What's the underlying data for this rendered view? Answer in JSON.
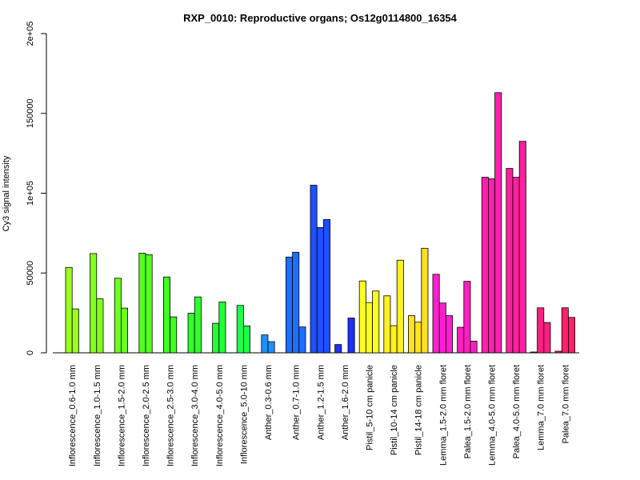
{
  "chart_data": {
    "type": "bar",
    "title": "RXP_0010: Reproductive organs; Os12g0114800_16354",
    "xlabel": "",
    "ylabel": "Cy3 signal intensity",
    "ylim": [
      0,
      200000
    ],
    "yticks": [
      0,
      50000,
      100000,
      150000,
      200000
    ],
    "ytick_labels": [
      "0",
      "50000",
      "1e+05",
      "150000",
      "2e+05"
    ],
    "grid": false,
    "legend": "none",
    "groups": [
      {
        "label": "Inflorescence_0.6-1.0 mm",
        "values": [
          53500,
          27500
        ],
        "color": "#9aff1f"
      },
      {
        "label": "Inflorescence_1.0-1.5 mm",
        "values": [
          62200,
          33800
        ],
        "color": "#83ff1f"
      },
      {
        "label": "Inflorescence_1.5-2.0 mm",
        "values": [
          46700,
          28000
        ],
        "color": "#6cff1f"
      },
      {
        "label": "Inflorescence_2.0-2.5 mm",
        "values": [
          62400,
          61500
        ],
        "color": "#55ff1f"
      },
      {
        "label": "Inflorescence_2.5-3.0 mm",
        "values": [
          47500,
          22500
        ],
        "color": "#3fff1f"
      },
      {
        "label": "Inflorescence_3.0-4.0 mm",
        "values": [
          24800,
          35000
        ],
        "color": "#2fff2a"
      },
      {
        "label": "Inflorescence_4.0-5.0 mm",
        "values": [
          18500,
          31800
        ],
        "color": "#22ff35"
      },
      {
        "label": "Inflorescence_5.0-10 mm",
        "values": [
          29700,
          16800
        ],
        "color": "#1fff4a"
      },
      {
        "label": "Anther_0.3-0.6 mm",
        "values": [
          11200,
          7000
        ],
        "color": "#1f8fff"
      },
      {
        "label": "Anther_0.7-1.0 mm",
        "values": [
          60000,
          63000,
          16200
        ],
        "color": "#1f6fff"
      },
      {
        "label": "Anther_1.2-1.5 mm",
        "values": [
          105000,
          78500,
          83500
        ],
        "color": "#1f4fff"
      },
      {
        "label": "Anther_1.6-2.0 mm",
        "values": [
          5200,
          0,
          21800
        ],
        "color": "#1f2fff"
      },
      {
        "label": "Pistil_5-10 cm panicle",
        "values": [
          45000,
          31500,
          38700
        ],
        "color": "#ffff1f"
      },
      {
        "label": "Pistil_10-14 cm panicle",
        "values": [
          35700,
          17000,
          58000
        ],
        "color": "#fff01f"
      },
      {
        "label": "Pistil_14-18 cm panicle",
        "values": [
          23300,
          19200,
          65500
        ],
        "color": "#ffe11f"
      },
      {
        "label": "Lemma_1.5-2.0 mm floret",
        "values": [
          49200,
          31200,
          23300
        ],
        "color": "#ff1fcf"
      },
      {
        "label": "Palea_1.5-2.0 mm floret",
        "values": [
          16000,
          44800,
          7300
        ],
        "color": "#ff1fbf"
      },
      {
        "label": "Lemma_4.0-5.0 mm floret",
        "values": [
          110000,
          109000,
          163000
        ],
        "color": "#ff1faf"
      },
      {
        "label": "Palea_4.0-5.0 mm floret",
        "values": [
          115500,
          110000,
          132500
        ],
        "color": "#ff1f9f"
      },
      {
        "label": "Lemma_7.0 mm floret",
        "values": [
          500,
          28200,
          19000
        ],
        "color": "#ff1f7f"
      },
      {
        "label": "Palea_7.0 mm floret",
        "values": [
          1000,
          28200,
          22200
        ],
        "color": "#ff1f6a"
      }
    ]
  }
}
